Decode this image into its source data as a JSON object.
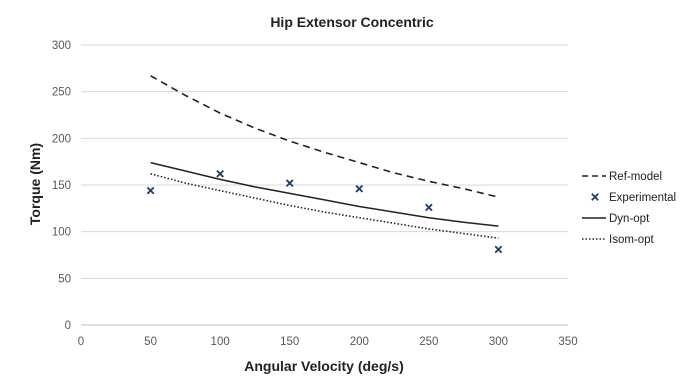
{
  "chart_data": {
    "type": "line",
    "title": "Hip Extensor Concentric",
    "xlabel": "Angular Velocity (deg/s)",
    "ylabel": "Torque (Nm)",
    "xlim": [
      0,
      350
    ],
    "ylim": [
      0,
      300
    ],
    "xticks": [
      0,
      50,
      100,
      150,
      200,
      250,
      300,
      350
    ],
    "yticks": [
      0,
      50,
      100,
      150,
      200,
      250,
      300
    ],
    "grid": "horizontal",
    "legend_position": "right",
    "series": [
      {
        "name": "Ref-model",
        "style": "dashed",
        "color": "#222222",
        "x": [
          50,
          75,
          100,
          125,
          150,
          175,
          200,
          225,
          250,
          275,
          300
        ],
        "values": [
          267,
          246,
          227,
          211,
          197,
          185,
          174,
          163,
          154,
          146,
          137
        ]
      },
      {
        "name": "Experimental",
        "style": "markers",
        "marker": "x",
        "color": "#1f3c6e",
        "x": [
          50,
          100,
          150,
          200,
          250,
          300
        ],
        "values": [
          144,
          162,
          152,
          146,
          126,
          81
        ]
      },
      {
        "name": "Dyn-opt",
        "style": "solid",
        "color": "#222222",
        "x": [
          50,
          75,
          100,
          125,
          150,
          175,
          200,
          225,
          250,
          275,
          300
        ],
        "values": [
          174,
          165,
          156,
          148,
          141,
          134,
          127,
          121,
          115,
          110,
          106
        ]
      },
      {
        "name": "Isom-opt",
        "style": "dotted",
        "color": "#222222",
        "x": [
          50,
          75,
          100,
          125,
          150,
          175,
          200,
          225,
          250,
          275,
          300
        ],
        "values": [
          162,
          152,
          144,
          136,
          128,
          121,
          115,
          109,
          103,
          98,
          93
        ]
      }
    ]
  }
}
